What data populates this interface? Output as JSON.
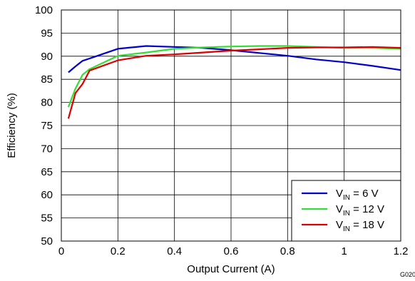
{
  "chart_data": {
    "type": "line",
    "xlabel": "Output Current (A)",
    "ylabel": "Efficiency (%)",
    "xlim": [
      0,
      1.2
    ],
    "ylim": [
      50,
      100
    ],
    "xticks": [
      0,
      0.2,
      0.4,
      0.6,
      0.8,
      1,
      1.2
    ],
    "xtick_labels": [
      "0",
      "0.2",
      "0.4",
      "0.6",
      "0.8",
      "1",
      "1.2"
    ],
    "yticks": [
      50,
      55,
      60,
      65,
      70,
      75,
      80,
      85,
      90,
      95,
      100
    ],
    "ytick_labels": [
      "50",
      "55",
      "60",
      "65",
      "70",
      "75",
      "80",
      "85",
      "90",
      "95",
      "100"
    ],
    "grid": true,
    "legend_position": "bottom-right",
    "figure_id": "G020",
    "series": [
      {
        "legend_main": "V",
        "legend_sub": "IN",
        "legend_value": " = 6 V",
        "color": "#0000cc",
        "x": [
          0.025,
          0.05,
          0.075,
          0.1,
          0.2,
          0.3,
          0.4,
          0.5,
          0.6,
          0.7,
          0.8,
          0.9,
          1.0,
          1.1,
          1.2
        ],
        "y": [
          86.5,
          87.8,
          89.0,
          89.5,
          91.6,
          92.2,
          92.0,
          91.8,
          91.3,
          90.7,
          90.1,
          89.3,
          88.7,
          87.9,
          87.0
        ]
      },
      {
        "legend_main": "V",
        "legend_sub": "IN",
        "legend_value": " = 12 V",
        "color": "#33dd33",
        "x": [
          0.025,
          0.05,
          0.075,
          0.1,
          0.2,
          0.3,
          0.4,
          0.5,
          0.6,
          0.7,
          0.8,
          0.9,
          1.0,
          1.1,
          1.2
        ],
        "y": [
          79.0,
          83.0,
          86.0,
          87.2,
          90.1,
          90.8,
          91.6,
          91.9,
          92.1,
          92.2,
          92.2,
          92.0,
          91.8,
          91.8,
          91.6
        ]
      },
      {
        "legend_main": "V",
        "legend_sub": "IN",
        "legend_value": " = 18 V",
        "color": "#dd0000",
        "x": [
          0.025,
          0.05,
          0.075,
          0.1,
          0.2,
          0.3,
          0.4,
          0.5,
          0.6,
          0.7,
          0.8,
          0.9,
          1.0,
          1.1,
          1.2
        ],
        "y": [
          76.5,
          82.0,
          84.0,
          86.9,
          89.1,
          90.1,
          90.4,
          90.8,
          91.2,
          91.5,
          91.8,
          91.9,
          91.9,
          92.0,
          91.8
        ]
      }
    ]
  }
}
